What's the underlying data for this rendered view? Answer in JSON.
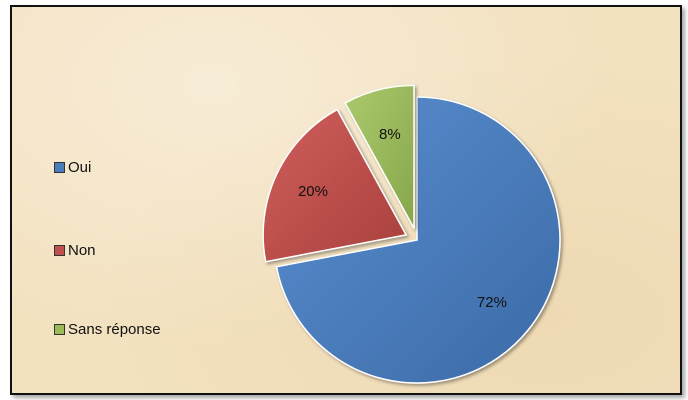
{
  "chart_data": {
    "type": "pie",
    "title": "",
    "categories": [
      "Oui",
      "Non",
      "Sans réponse"
    ],
    "values": [
      72,
      20,
      8
    ],
    "labels": [
      "72%",
      "20%",
      "8%"
    ],
    "colors": [
      "#4a7ebb",
      "#c0504d",
      "#9bbb59"
    ],
    "exploded": true,
    "legend_position": "left"
  }
}
